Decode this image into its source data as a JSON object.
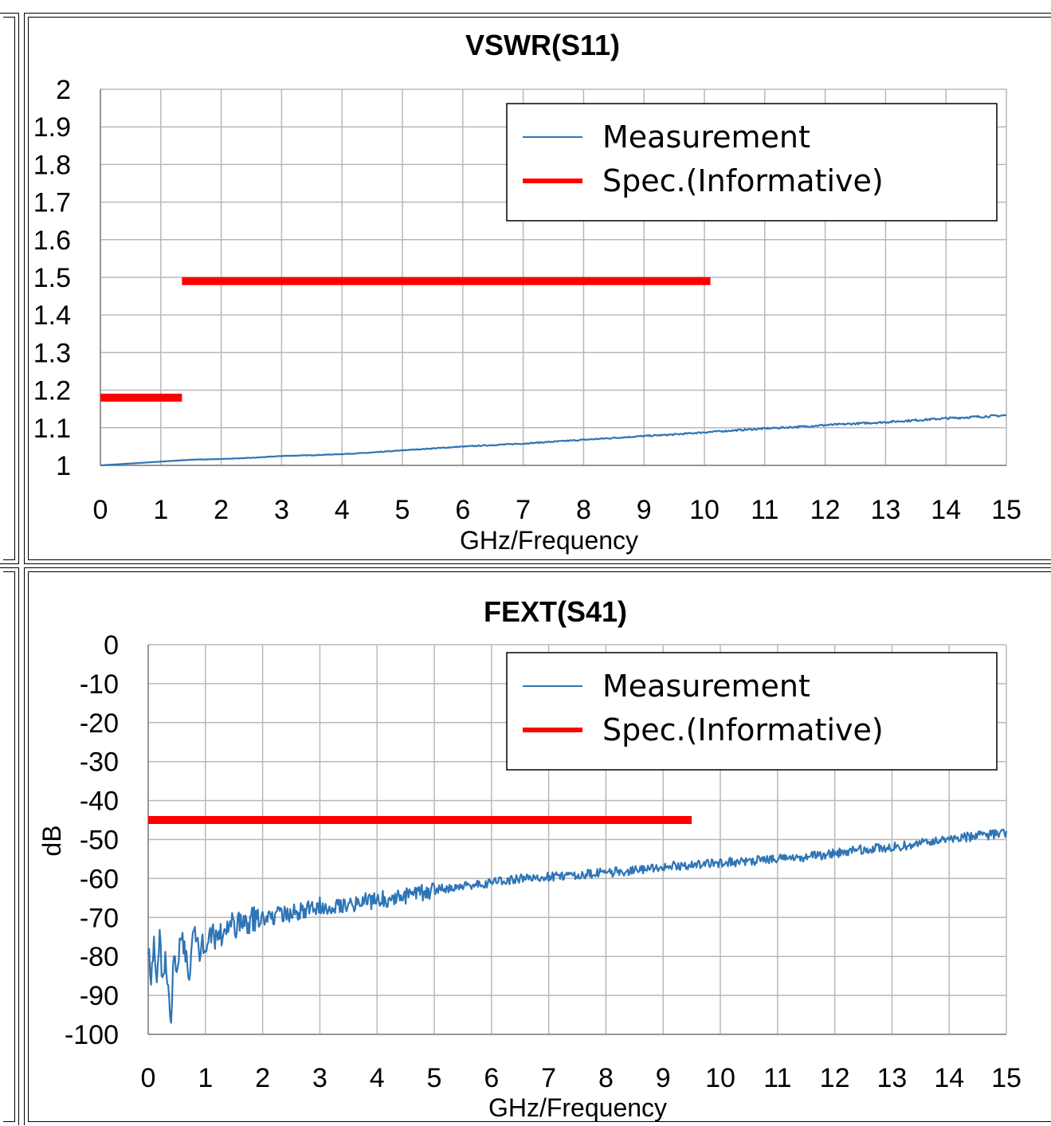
{
  "charts": [
    {
      "chart_data": {
        "type": "line",
        "title": "VSWR(S11)",
        "xlabel": "GHz/Frequency",
        "ylabel": "",
        "xlim": [
          0,
          15
        ],
        "ylim": [
          1,
          2
        ],
        "xticks": [
          0,
          1,
          2,
          3,
          4,
          5,
          6,
          7,
          8,
          9,
          10,
          11,
          12,
          13,
          14,
          15
        ],
        "yticks": [
          1,
          1.1,
          1.2,
          1.3,
          1.4,
          1.5,
          1.6,
          1.7,
          1.8,
          1.9,
          2
        ],
        "grid": true,
        "legend_position": "top-right",
        "series": [
          {
            "name": "Measurement",
            "color": "#2e75b6",
            "x": [
              0,
              0.5,
              1,
              1.5,
              2,
              2.5,
              3,
              3.5,
              4,
              4.5,
              5,
              5.5,
              6,
              6.5,
              7,
              7.5,
              8,
              8.5,
              9,
              9.5,
              10,
              10.5,
              11,
              11.5,
              12,
              12.5,
              13,
              13.5,
              14,
              14.5,
              15
            ],
            "y": [
              1.0,
              1.005,
              1.01,
              1.015,
              1.017,
              1.02,
              1.025,
              1.027,
              1.03,
              1.034,
              1.04,
              1.045,
              1.05,
              1.054,
              1.058,
              1.063,
              1.068,
              1.073,
              1.078,
              1.082,
              1.088,
              1.093,
              1.098,
              1.102,
              1.107,
              1.111,
              1.115,
              1.12,
              1.125,
              1.129,
              1.133
            ]
          },
          {
            "name": "Spec.(Informative)",
            "color": "#ff0000",
            "segments": [
              {
                "x": [
                  0,
                  1.35
                ],
                "y": [
                  1.18,
                  1.18
                ]
              },
              {
                "x": [
                  1.35,
                  10.1
                ],
                "y": [
                  1.49,
                  1.49
                ]
              }
            ]
          }
        ]
      }
    },
    {
      "chart_data": {
        "type": "line",
        "title": "FEXT(S41)",
        "xlabel": "GHz/Frequency",
        "ylabel": "dB",
        "xlim": [
          0,
          15
        ],
        "ylim": [
          -100,
          0
        ],
        "xticks": [
          0,
          1,
          2,
          3,
          4,
          5,
          6,
          7,
          8,
          9,
          10,
          11,
          12,
          13,
          14,
          15
        ],
        "yticks": [
          0,
          -10,
          -20,
          -30,
          -40,
          -50,
          -60,
          -70,
          -80,
          -90,
          -100
        ],
        "grid": true,
        "legend_position": "top-right",
        "series": [
          {
            "name": "Measurement",
            "color": "#2e75b6",
            "x": [
              0,
              0.05,
              0.1,
              0.15,
              0.2,
              0.25,
              0.3,
              0.35,
              0.4,
              0.45,
              0.5,
              0.6,
              0.7,
              0.8,
              0.9,
              1,
              1.25,
              1.5,
              1.75,
              2,
              2.5,
              3,
              3.5,
              4,
              4.5,
              5,
              5.5,
              6,
              6.5,
              7,
              7.5,
              8,
              8.5,
              9,
              9.5,
              10,
              10.5,
              11,
              11.5,
              12,
              12.5,
              13,
              13.5,
              14,
              14.5,
              15
            ],
            "y": [
              -76,
              -85,
              -78,
              -88,
              -74,
              -86,
              -80,
              -89,
              -100,
              -77,
              -82,
              -75,
              -85,
              -73,
              -79,
              -76,
              -74,
              -72,
              -71,
              -70,
              -69,
              -67,
              -66.5,
              -65.5,
              -64.5,
              -63,
              -62,
              -61,
              -60,
              -59.5,
              -59,
              -58.5,
              -58,
              -57,
              -56.5,
              -56,
              -55.5,
              -55,
              -54.5,
              -53.5,
              -52.5,
              -52,
              -51,
              -50,
              -49,
              -48.5
            ]
          },
          {
            "name": "Spec.(Informative)",
            "color": "#ff0000",
            "segments": [
              {
                "x": [
                  0,
                  9.5
                ],
                "y": [
                  -45,
                  -45
                ]
              }
            ]
          }
        ]
      }
    }
  ]
}
